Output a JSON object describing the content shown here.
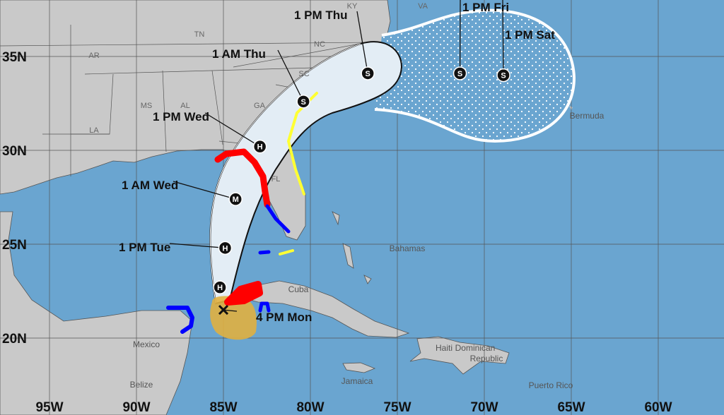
{
  "map": {
    "colors": {
      "ocean": "#6aa5d0",
      "land": "#c9c9c9",
      "cone": "#e3edf5",
      "hurricane_warning": "#ff0000",
      "hurricane_watch": "#f0a0c8",
      "tropical_storm_warning": "#0000ff",
      "tropical_storm_watch": "#ffff33",
      "wind_field": "#e0b040"
    },
    "lon_ticks": [
      "95W",
      "90W",
      "85W",
      "80W",
      "75W",
      "70W",
      "65W",
      "60W"
    ],
    "lat_ticks": [
      "35N",
      "30N",
      "25N",
      "20N"
    ],
    "region_labels": [
      "KY",
      "VA",
      "TN",
      "NC",
      "AR",
      "SC",
      "MS",
      "AL",
      "GA",
      "LA",
      "FL"
    ],
    "country_labels": [
      "Bermuda",
      "Bahamas",
      "Cuba",
      "Mexico",
      "Belize",
      "Jamaica",
      "Haiti",
      "Dominican",
      "Republic",
      "Puerto Rico"
    ],
    "track": [
      {
        "label": "4 PM Mon",
        "symbol": "x",
        "lon": 85.0,
        "lat": 21.5
      },
      {
        "label": "",
        "symbol": "H",
        "lon": 85.2,
        "lat": 22.7
      },
      {
        "label": "1 PM Tue",
        "symbol": "H",
        "lon": 84.9,
        "lat": 24.8
      },
      {
        "label": "1 AM Wed",
        "symbol": "M",
        "lon": 84.3,
        "lat": 27.4
      },
      {
        "label": "1 PM Wed",
        "symbol": "H",
        "lon": 82.9,
        "lat": 30.2
      },
      {
        "label": "1 AM Thu",
        "symbol": "S",
        "lon": 80.4,
        "lat": 32.6
      },
      {
        "label": "1 PM Thu",
        "symbol": "S",
        "lon": 76.7,
        "lat": 34.1
      },
      {
        "label": "1 PM Fri",
        "symbol": "S",
        "lon": 71.4,
        "lat": 34.1
      },
      {
        "label": "1 PM Sat",
        "symbol": "S",
        "lon": 68.9,
        "lat": 34.0
      }
    ]
  }
}
